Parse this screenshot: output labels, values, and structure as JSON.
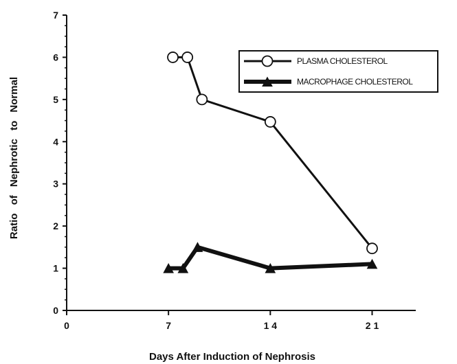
{
  "chart_data": {
    "type": "line",
    "xlabel": "Days After Induction of Nephrosis",
    "ylabel": "Ratio of Nephrotic to Normal",
    "xlim": [
      0,
      24
    ],
    "ylim": [
      0,
      7
    ],
    "x_ticks": [
      0,
      7,
      14,
      21
    ],
    "x_tick_labels": [
      "0",
      "7",
      "1 4",
      "2 1"
    ],
    "y_ticks": [
      0,
      1,
      2,
      3,
      4,
      5,
      6,
      7
    ],
    "y_tick_labels": [
      "0",
      "1",
      "2",
      "3",
      "4",
      "5",
      "6",
      "7"
    ],
    "grid": false,
    "legend": "top-right",
    "series": [
      {
        "name": "PLASMA CHOLESTEROL",
        "marker": "open-circle",
        "line_width": "thin",
        "x": [
          7.3,
          8.3,
          9.3,
          14,
          21
        ],
        "y": [
          6,
          6,
          5,
          4.47,
          1.47
        ]
      },
      {
        "name": "MACROPHAGE CHOLESTEROL",
        "marker": "filled-triangle",
        "line_width": "thick",
        "x": [
          7,
          8,
          9,
          14,
          21
        ],
        "y": [
          1,
          1,
          1.5,
          1,
          1.1
        ]
      }
    ]
  }
}
